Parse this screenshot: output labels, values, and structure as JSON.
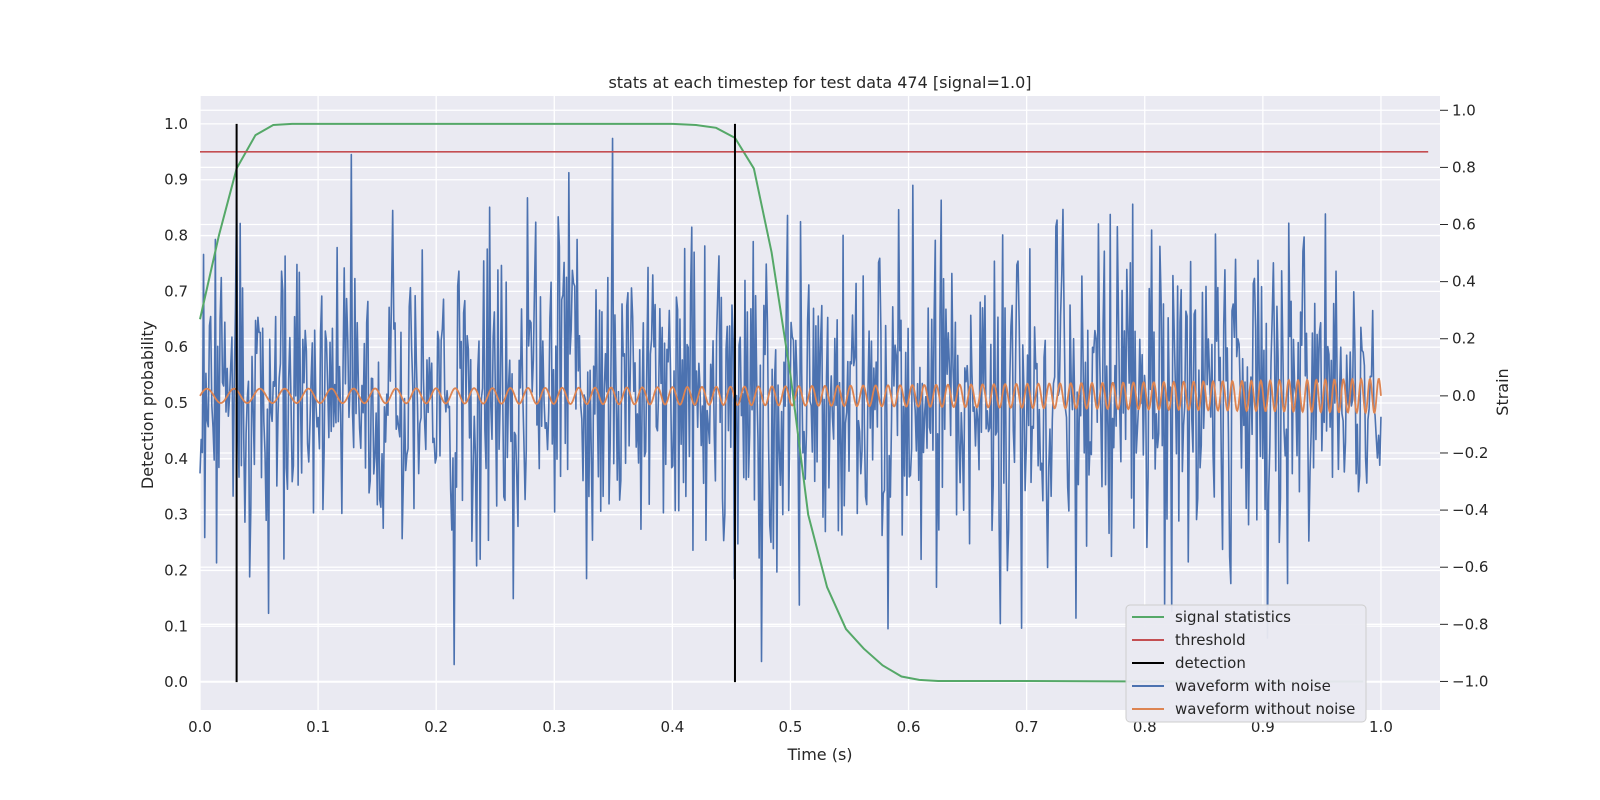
{
  "chart_data": {
    "type": "line",
    "title": "stats at each timestep for test data 474 [signal=1.0]",
    "xlabel": "Time (s)",
    "ylabel_left": "Detection probability",
    "ylabel_right": "Strain",
    "xlim": [
      0.0,
      1.05
    ],
    "ylim_left": [
      -0.05,
      1.05
    ],
    "ylim_right": [
      -1.1,
      1.05
    ],
    "x_ticks": [
      "0.0",
      "0.1",
      "0.2",
      "0.3",
      "0.4",
      "0.5",
      "0.6",
      "0.7",
      "0.8",
      "0.9",
      "1.0"
    ],
    "y_ticks_left": [
      "0.0",
      "0.1",
      "0.2",
      "0.3",
      "0.4",
      "0.5",
      "0.6",
      "0.7",
      "0.8",
      "0.9",
      "1.0"
    ],
    "y_ticks_right": [
      "−1.0",
      "−0.8",
      "−0.6",
      "−0.4",
      "−0.2",
      "0.0",
      "0.2",
      "0.4",
      "0.6",
      "0.8",
      "1.0"
    ],
    "grid": true,
    "legend_position": "lower-right",
    "series": [
      {
        "name": "signal statistics",
        "axis": "left",
        "color": "#55a868",
        "x": [
          0.0,
          0.016,
          0.031,
          0.047,
          0.062,
          0.078,
          0.094,
          0.109,
          0.125,
          0.2,
          0.3,
          0.4,
          0.42,
          0.437,
          0.453,
          0.469,
          0.484,
          0.5,
          0.515,
          0.531,
          0.547,
          0.562,
          0.578,
          0.594,
          0.609,
          0.625,
          0.7,
          0.8,
          0.9,
          0.985
        ],
        "y": [
          0.65,
          0.8,
          0.92,
          0.98,
          0.998,
          1.0,
          1.0,
          1.0,
          1.0,
          1.0,
          1.0,
          1.0,
          0.998,
          0.993,
          0.975,
          0.92,
          0.77,
          0.55,
          0.3,
          0.17,
          0.095,
          0.06,
          0.03,
          0.01,
          0.004,
          0.002,
          0.002,
          0.001,
          0.001,
          0.001
        ]
      },
      {
        "name": "threshold",
        "axis": "left",
        "color": "#c44e52",
        "x": [
          0.0,
          1.04
        ],
        "y": [
          0.95,
          0.95
        ]
      },
      {
        "name": "detection",
        "axis": "left",
        "color": "#000000",
        "segments": [
          {
            "x": 0.031,
            "y": [
              0.0,
              1.0
            ]
          },
          {
            "x": 0.453,
            "y": [
              0.0,
              1.0
            ]
          }
        ]
      },
      {
        "name": "waveform with noise",
        "axis": "right",
        "color": "#4c72b0",
        "x_start": 0.0,
        "x_end": 1.0,
        "points": 1000,
        "amplitude_std": 0.3,
        "y_range": [
          -1.0,
          0.99
        ]
      },
      {
        "name": "waveform without noise",
        "axis": "right",
        "color": "#dd8452",
        "x_start": 0.0,
        "x_end": 1.0,
        "start_frequency_hz": 42,
        "end_frequency_hz": 135,
        "start_amplitude": 0.025,
        "end_amplitude": 0.06
      }
    ]
  },
  "colors": {
    "plot_background": "#eaeaf2",
    "grid": "#ffffff",
    "legend_background": "#eaeaf2",
    "legend_border": "#cccccc"
  }
}
